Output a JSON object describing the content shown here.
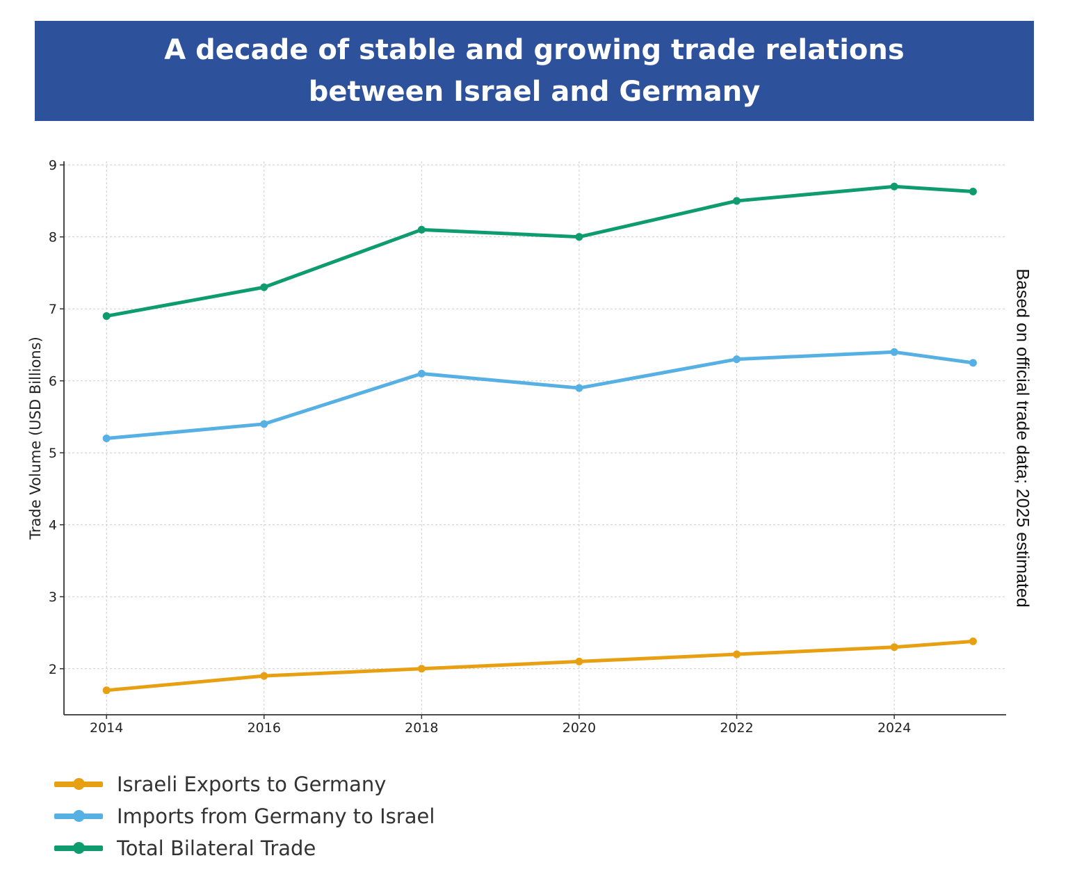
{
  "chart_data": {
    "type": "line",
    "title_lines": [
      "A decade of stable and growing trade relations",
      "between Israel and Germany"
    ],
    "ylabel": "Trade Volume (USD Billions)",
    "xlabel": "",
    "note": "Based on official trade data; 2025 estimated",
    "x": [
      2014,
      2016,
      2018,
      2020,
      2022,
      2024,
      2025
    ],
    "xticks": [
      "2014",
      "2016",
      "2018",
      "2020",
      "2022",
      "2024"
    ],
    "yticks": [
      "2",
      "3",
      "4",
      "5",
      "6",
      "7",
      "8",
      "9"
    ],
    "xlim": [
      2013.46,
      2025.42
    ],
    "ylim": [
      1.36,
      9.05
    ],
    "grid": true,
    "legend_position": "bottom-left",
    "series": [
      {
        "name": "Israeli Exports to Germany",
        "color": "#E8A013",
        "values": [
          1.7,
          1.9,
          2.0,
          2.1,
          2.2,
          2.3,
          2.38
        ]
      },
      {
        "name": "Imports from Germany to Israel",
        "color": "#56B0E3",
        "values": [
          5.2,
          5.4,
          6.1,
          5.9,
          6.3,
          6.4,
          6.25
        ]
      },
      {
        "name": "Total Bilateral Trade",
        "color": "#0E9C6E",
        "values": [
          6.9,
          7.3,
          8.1,
          8.0,
          8.5,
          8.7,
          8.63
        ]
      }
    ]
  }
}
